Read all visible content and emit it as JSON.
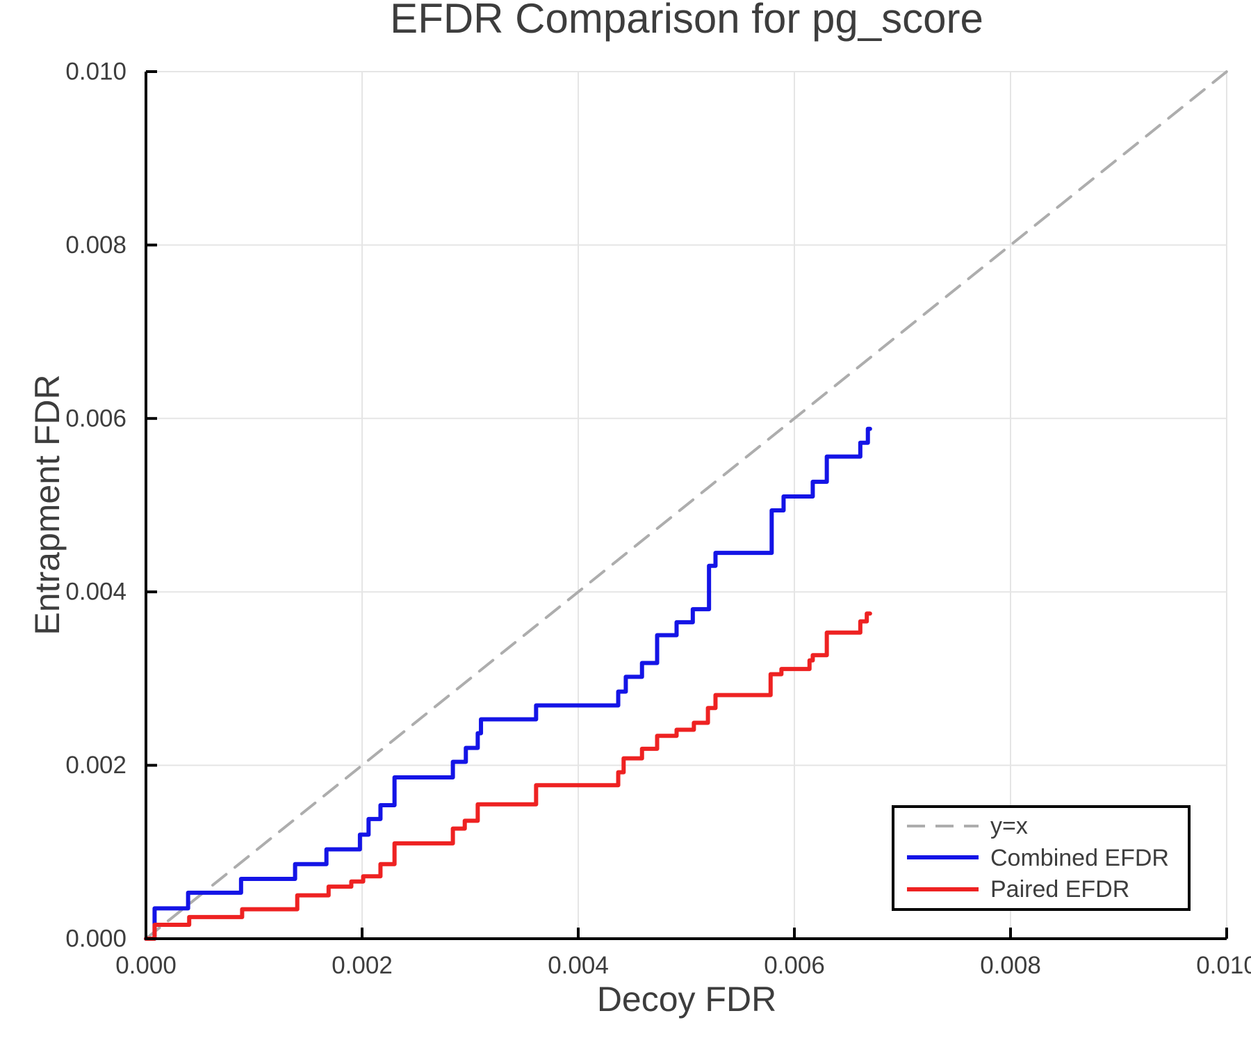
{
  "chart_data": {
    "type": "line",
    "title": "EFDR Comparison for pg_score",
    "xlabel": "Decoy FDR",
    "ylabel": "Entrapment FDR",
    "xlim": [
      0.0,
      0.01
    ],
    "ylim": [
      0.0,
      0.01
    ],
    "grid": true,
    "x_ticks": [
      {
        "value": 0.0,
        "label": "0.000"
      },
      {
        "value": 0.002,
        "label": "0.002"
      },
      {
        "value": 0.004,
        "label": "0.004"
      },
      {
        "value": 0.006,
        "label": "0.006"
      },
      {
        "value": 0.008,
        "label": "0.008"
      },
      {
        "value": 0.01,
        "label": "0.010"
      }
    ],
    "y_ticks": [
      {
        "value": 0.0,
        "label": "0.000"
      },
      {
        "value": 0.002,
        "label": "0.002"
      },
      {
        "value": 0.004,
        "label": "0.004"
      },
      {
        "value": 0.006,
        "label": "0.006"
      },
      {
        "value": 0.008,
        "label": "0.008"
      },
      {
        "value": 0.01,
        "label": "0.010"
      }
    ],
    "legend": {
      "position": "bottom-right",
      "entries": [
        "y=x",
        "Combined EFDR",
        "Paired EFDR"
      ]
    },
    "series": [
      {
        "name": "y=x",
        "color": "#adadad",
        "style": "dashed",
        "width": 4,
        "step": false,
        "points": [
          [
            0.0,
            0.0
          ],
          [
            0.01,
            0.01
          ]
        ]
      },
      {
        "name": "Combined EFDR",
        "color": "#1414e6",
        "style": "solid",
        "width": 6,
        "step": true,
        "end_x": 0.0067,
        "points": [
          [
            8e-05,
            0.00035
          ],
          [
            0.00039,
            0.00053
          ],
          [
            0.00088,
            0.00069
          ],
          [
            0.00138,
            0.00086
          ],
          [
            0.00167,
            0.00103
          ],
          [
            0.00198,
            0.0012
          ],
          [
            0.00206,
            0.00138
          ],
          [
            0.00217,
            0.00154
          ],
          [
            0.0023,
            0.00186
          ],
          [
            0.00284,
            0.00204
          ],
          [
            0.00296,
            0.0022
          ],
          [
            0.00307,
            0.00237
          ],
          [
            0.0031,
            0.00253
          ],
          [
            0.00361,
            0.00269
          ],
          [
            0.00437,
            0.00285
          ],
          [
            0.00444,
            0.00302
          ],
          [
            0.00459,
            0.00318
          ],
          [
            0.00473,
            0.0035
          ],
          [
            0.00491,
            0.00365
          ],
          [
            0.00506,
            0.0038
          ],
          [
            0.00521,
            0.0043
          ],
          [
            0.00527,
            0.00445
          ],
          [
            0.00579,
            0.00494
          ],
          [
            0.0059,
            0.0051
          ],
          [
            0.00617,
            0.00527
          ],
          [
            0.0063,
            0.00556
          ],
          [
            0.00661,
            0.00572
          ],
          [
            0.00668,
            0.00588
          ]
        ]
      },
      {
        "name": "Paired EFDR",
        "color": "#ee2222",
        "style": "solid",
        "width": 6,
        "step": true,
        "end_x": 0.0067,
        "points": [
          [
            8e-05,
            0.00016
          ],
          [
            0.0004,
            0.00025
          ],
          [
            0.00089,
            0.00034
          ],
          [
            0.0014,
            0.0005
          ],
          [
            0.00169,
            0.0006
          ],
          [
            0.0019,
            0.00066
          ],
          [
            0.00201,
            0.00072
          ],
          [
            0.00217,
            0.00086
          ],
          [
            0.0023,
            0.0011
          ],
          [
            0.00284,
            0.00127
          ],
          [
            0.00295,
            0.00136
          ],
          [
            0.00307,
            0.00155
          ],
          [
            0.00361,
            0.00177
          ],
          [
            0.00437,
            0.00192
          ],
          [
            0.00442,
            0.00208
          ],
          [
            0.00459,
            0.00219
          ],
          [
            0.00473,
            0.00234
          ],
          [
            0.00491,
            0.00241
          ],
          [
            0.00507,
            0.00249
          ],
          [
            0.0052,
            0.00266
          ],
          [
            0.00527,
            0.00281
          ],
          [
            0.00578,
            0.00305
          ],
          [
            0.00588,
            0.00311
          ],
          [
            0.00614,
            0.00321
          ],
          [
            0.00617,
            0.00327
          ],
          [
            0.0063,
            0.00353
          ],
          [
            0.00661,
            0.00366
          ],
          [
            0.00667,
            0.00375
          ]
        ]
      }
    ],
    "colors": {
      "grid": "#e5e5e5",
      "spine": "#000000",
      "text": "#3d3d3d",
      "background": "#ffffff"
    }
  }
}
